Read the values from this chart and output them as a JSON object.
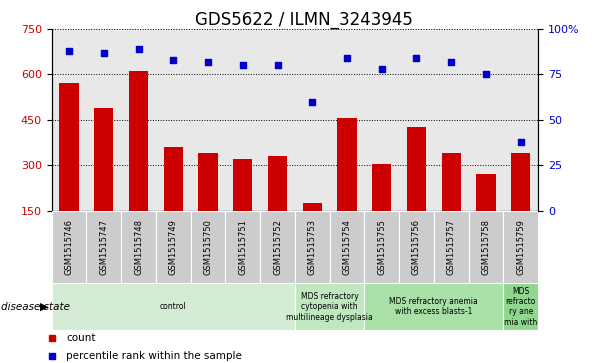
{
  "title": "GDS5622 / ILMN_3243945",
  "samples": [
    "GSM1515746",
    "GSM1515747",
    "GSM1515748",
    "GSM1515749",
    "GSM1515750",
    "GSM1515751",
    "GSM1515752",
    "GSM1515753",
    "GSM1515754",
    "GSM1515755",
    "GSM1515756",
    "GSM1515757",
    "GSM1515758",
    "GSM1515759"
  ],
  "counts": [
    570,
    490,
    610,
    360,
    340,
    320,
    330,
    175,
    455,
    305,
    425,
    340,
    270,
    340
  ],
  "percentiles": [
    88,
    87,
    89,
    83,
    82,
    80,
    80,
    60,
    84,
    78,
    84,
    82,
    75,
    38
  ],
  "bar_color": "#cc0000",
  "dot_color": "#0000cc",
  "ylim_left": [
    150,
    750
  ],
  "ylim_right": [
    0,
    100
  ],
  "yticks_left": [
    150,
    300,
    450,
    600,
    750
  ],
  "yticks_right": [
    0,
    25,
    50,
    75,
    100
  ],
  "disease_groups": [
    {
      "label": "control",
      "start": 0,
      "end": 7,
      "color": "#d4ecd4"
    },
    {
      "label": "MDS refractory\ncytopenia with\nmultilineage dysplasia",
      "start": 7,
      "end": 9,
      "color": "#c0e8c0"
    },
    {
      "label": "MDS refractory anemia\nwith excess blasts-1",
      "start": 9,
      "end": 13,
      "color": "#a8e0a8"
    },
    {
      "label": "MDS\nrefracto\nry ane\nmia with",
      "start": 13,
      "end": 14,
      "color": "#90d890"
    }
  ],
  "legend_items": [
    {
      "label": "count",
      "color": "#cc0000"
    },
    {
      "label": "percentile rank within the sample",
      "color": "#0000cc"
    }
  ],
  "disease_state_label": "disease state",
  "bg_color": "#ffffff",
  "tick_label_color_left": "#cc0000",
  "tick_label_color_right": "#0000cc",
  "title_fontsize": 12,
  "axis_fontsize": 8,
  "bar_width": 0.55,
  "col_bg_color": "#cccccc",
  "col_bg_alpha": 0.45
}
